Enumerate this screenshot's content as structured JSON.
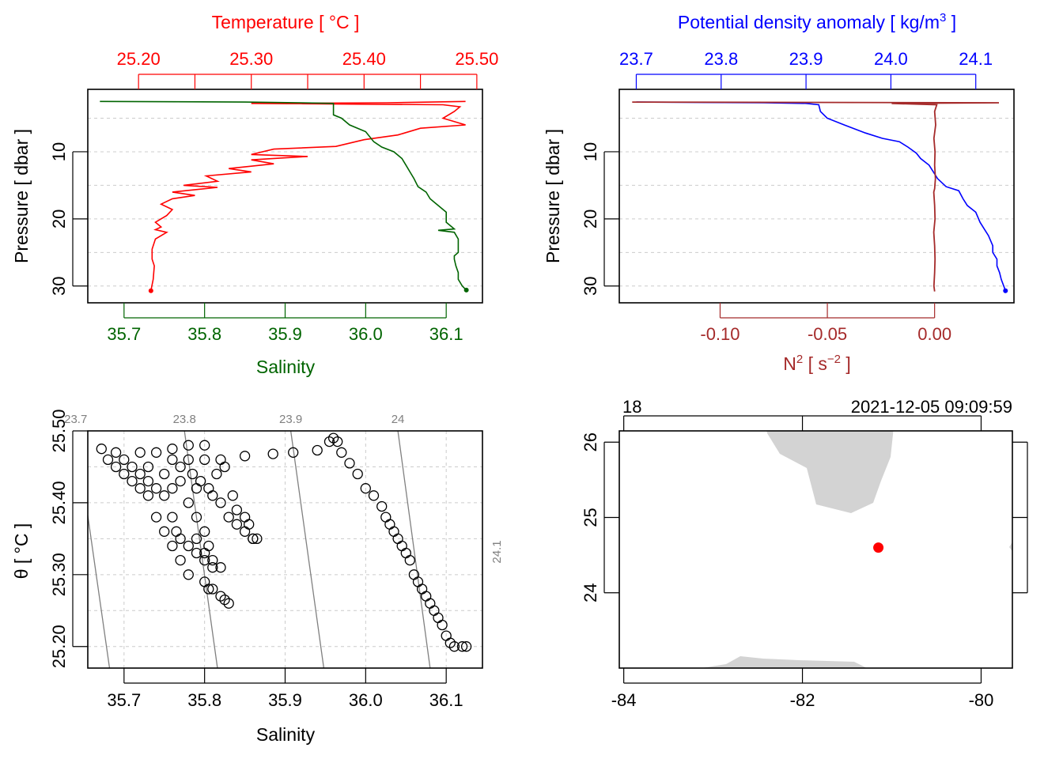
{
  "colors": {
    "temperature": "#ff0000",
    "salinity": "#006400",
    "density": "#0000ff",
    "n2": "#a52a2a",
    "land": "#d3d3d3",
    "station": "#ff0000",
    "isopycnal": "#808080",
    "grid": "#cccccc"
  },
  "chart_data": [
    {
      "type": "line",
      "panel": "salinity-temperature-profile",
      "ylabel": "Pressure [ dbar ]",
      "ylim": [
        32.5,
        0.7
      ],
      "yticks": [
        10,
        20,
        30
      ],
      "grid_y": [
        5,
        10,
        15,
        20,
        25,
        30
      ],
      "top_axis": {
        "label": "Temperature [ °C ]",
        "range": [
          25.155,
          25.505
        ],
        "tick_labels": [
          "25.20",
          "25.30",
          "25.40",
          "25.50"
        ],
        "tick_values": [
          25.2,
          25.3,
          25.4,
          25.5
        ],
        "minor_ticks": [
          25.25,
          25.35,
          25.45
        ]
      },
      "bottom_axis": {
        "label": "Salinity",
        "range": [
          35.655,
          36.145
        ],
        "tick_labels": [
          "35.7",
          "35.8",
          "35.9",
          "36.0",
          "36.1"
        ],
        "tick_values": [
          35.7,
          35.8,
          35.9,
          36.0,
          36.1
        ]
      },
      "series": [
        {
          "name": "Temperature",
          "axis": "top",
          "points": [
            [
              25.49,
              2.5
            ],
            [
              25.42,
              2.7
            ],
            [
              25.3,
              2.8
            ],
            [
              25.47,
              3.0
            ],
            [
              25.485,
              3.3
            ],
            [
              25.48,
              4
            ],
            [
              25.47,
              5
            ],
            [
              25.49,
              6
            ],
            [
              25.45,
              6.5
            ],
            [
              25.43,
              7.5
            ],
            [
              25.4,
              8.2
            ],
            [
              25.375,
              9.2
            ],
            [
              25.32,
              9.6
            ],
            [
              25.3,
              10.4
            ],
            [
              25.35,
              10.7
            ],
            [
              25.3,
              11.2
            ],
            [
              25.32,
              11.8
            ],
            [
              25.28,
              12.5
            ],
            [
              25.3,
              13
            ],
            [
              25.26,
              13.6
            ],
            [
              25.27,
              14.4
            ],
            [
              25.24,
              15
            ],
            [
              25.27,
              15.3
            ],
            [
              25.23,
              16
            ],
            [
              25.25,
              16.5
            ],
            [
              25.23,
              17
            ],
            [
              25.22,
              17.8
            ],
            [
              25.23,
              18.6
            ],
            [
              25.225,
              19.5
            ],
            [
              25.215,
              20.5
            ],
            [
              25.22,
              21.2
            ],
            [
              25.215,
              21.6
            ],
            [
              25.225,
              22
            ],
            [
              25.215,
              23
            ],
            [
              25.212,
              24.5
            ],
            [
              25.212,
              26
            ],
            [
              25.214,
              27
            ],
            [
              25.213,
              29
            ],
            [
              25.211,
              30.7
            ]
          ]
        },
        {
          "name": "Salinity",
          "axis": "bottom",
          "points": [
            [
              35.67,
              2.5
            ],
            [
              35.85,
              2.6
            ],
            [
              35.92,
              2.7
            ],
            [
              35.96,
              2.8
            ],
            [
              35.96,
              3.5
            ],
            [
              35.96,
              4.5
            ],
            [
              35.97,
              5
            ],
            [
              35.98,
              6
            ],
            [
              36.0,
              7
            ],
            [
              36.01,
              8.5
            ],
            [
              36.02,
              9.3
            ],
            [
              36.035,
              10
            ],
            [
              36.04,
              10.5
            ],
            [
              36.045,
              11
            ],
            [
              36.05,
              12
            ],
            [
              36.055,
              13
            ],
            [
              36.06,
              14
            ],
            [
              36.065,
              15.2
            ],
            [
              36.075,
              16
            ],
            [
              36.08,
              17
            ],
            [
              36.09,
              18
            ],
            [
              36.1,
              19
            ],
            [
              36.1,
              20.5
            ],
            [
              36.11,
              21.5
            ],
            [
              36.09,
              21.7
            ],
            [
              36.11,
              22
            ],
            [
              36.115,
              23
            ],
            [
              36.115,
              24
            ],
            [
              36.115,
              25
            ],
            [
              36.11,
              25.5
            ],
            [
              36.11,
              26
            ],
            [
              36.112,
              27
            ],
            [
              36.115,
              28
            ],
            [
              36.115,
              29
            ],
            [
              36.12,
              30
            ],
            [
              36.125,
              30.6
            ]
          ]
        }
      ]
    },
    {
      "type": "line",
      "panel": "density-n2-profile",
      "ylabel": "Pressure [ dbar ]",
      "ylim": [
        32.5,
        0.7
      ],
      "yticks": [
        10,
        20,
        30
      ],
      "grid_y": [
        5,
        10,
        15,
        20,
        25,
        30
      ],
      "top_axis": {
        "label": "Potential density anomaly [ kg/m³ ]",
        "label_prefix": "Potential density anomaly [ kg/m",
        "label_sup": "3",
        "label_suffix": " ]",
        "range": [
          23.68,
          24.145
        ],
        "tick_labels": [
          "23.7",
          "23.8",
          "23.9",
          "24.0",
          "24.1"
        ],
        "tick_values": [
          23.7,
          23.8,
          23.9,
          24.0,
          24.1
        ]
      },
      "bottom_axis": {
        "label": "N² [ s⁻² ]",
        "label_base": "N",
        "label_sup1": "2",
        "label_mid": " [ s",
        "label_sup2": "−2",
        "label_end": " ]",
        "range": [
          -0.147,
          0.037
        ],
        "tick_labels": [
          "-0.10",
          "-0.05",
          "0.00"
        ],
        "tick_values": [
          -0.1,
          -0.05,
          0.0
        ]
      },
      "series": [
        {
          "name": "Potential density anomaly",
          "axis": "top",
          "points": [
            [
              23.7,
              2.6
            ],
            [
              23.85,
              2.7
            ],
            [
              23.9,
              2.8
            ],
            [
              23.915,
              3
            ],
            [
              23.917,
              4
            ],
            [
              23.925,
              5
            ],
            [
              23.945,
              6
            ],
            [
              23.97,
              7.2
            ],
            [
              23.99,
              8
            ],
            [
              24.01,
              8.5
            ],
            [
              24.02,
              9.3
            ],
            [
              24.03,
              10.2
            ],
            [
              24.035,
              11
            ],
            [
              24.045,
              12
            ],
            [
              24.05,
              13
            ],
            [
              24.055,
              14
            ],
            [
              24.065,
              15.2
            ],
            [
              24.08,
              15.8
            ],
            [
              24.085,
              17
            ],
            [
              24.09,
              18
            ],
            [
              24.1,
              19
            ],
            [
              24.105,
              20.5
            ],
            [
              24.11,
              21.5
            ],
            [
              24.115,
              22.5
            ],
            [
              24.12,
              24
            ],
            [
              24.12,
              25
            ],
            [
              24.125,
              26
            ],
            [
              24.125,
              27
            ],
            [
              24.128,
              28
            ],
            [
              24.13,
              29
            ],
            [
              24.133,
              30
            ],
            [
              24.135,
              30.7
            ]
          ]
        },
        {
          "name": "N2",
          "axis": "bottom",
          "points": [
            [
              -0.141,
              2.6
            ],
            [
              0.03,
              2.7
            ],
            [
              -0.02,
              2.8
            ],
            [
              0.001,
              3.0
            ],
            [
              0.0,
              4
            ],
            [
              0.0005,
              6
            ],
            [
              -0.0003,
              8
            ],
            [
              0.0002,
              10
            ],
            [
              0.0,
              12
            ],
            [
              0.0004,
              14
            ],
            [
              0.0,
              15.5
            ],
            [
              -0.0004,
              16
            ],
            [
              0.0,
              18
            ],
            [
              0.0002,
              20
            ],
            [
              -0.0004,
              22
            ],
            [
              0.0,
              24
            ],
            [
              0.0002,
              26
            ],
            [
              0.0,
              28
            ],
            [
              -0.0003,
              30
            ],
            [
              0.0,
              30.8
            ]
          ]
        }
      ]
    },
    {
      "type": "scatter",
      "panel": "ts-diagram",
      "xlabel": "Salinity",
      "ylabel": "θ [ °C ]",
      "xlim": [
        35.655,
        36.145
      ],
      "ylim": [
        25.17,
        25.5
      ],
      "xticks": [
        35.7,
        35.8,
        35.9,
        36.0,
        36.1
      ],
      "xtick_labels": [
        "35.7",
        "35.8",
        "35.9",
        "36.0",
        "36.1"
      ],
      "yticks": [
        25.2,
        25.3,
        25.4,
        25.5
      ],
      "ytick_labels": [
        "25.20",
        "25.30",
        "25.40",
        "25.50"
      ],
      "isopycnals": [
        {
          "label": "23.7",
          "s_bottom": 35.682,
          "s_top": 35.64
        },
        {
          "label": "23.8",
          "s_bottom": 35.816,
          "s_top": 35.775
        },
        {
          "label": "23.9",
          "s_bottom": 35.948,
          "s_top": 35.907
        },
        {
          "label": "24",
          "s_bottom": 36.08,
          "s_top": 36.04
        },
        {
          "label": "24.1",
          "s_bottom": 36.213,
          "s_top": 36.172
        }
      ],
      "points": [
        [
          35.672,
          25.475
        ],
        [
          35.69,
          25.47
        ],
        [
          35.7,
          25.46
        ],
        [
          35.71,
          25.45
        ],
        [
          35.72,
          25.44
        ],
        [
          35.73,
          25.43
        ],
        [
          35.74,
          25.42
        ],
        [
          35.75,
          25.41
        ],
        [
          35.76,
          25.38
        ],
        [
          35.765,
          25.36
        ],
        [
          35.77,
          25.35
        ],
        [
          35.78,
          25.34
        ],
        [
          35.79,
          25.33
        ],
        [
          35.8,
          25.32
        ],
        [
          35.81,
          25.31
        ],
        [
          35.72,
          25.47
        ],
        [
          35.74,
          25.47
        ],
        [
          35.76,
          25.475
        ],
        [
          35.78,
          25.48
        ],
        [
          35.8,
          25.48
        ],
        [
          35.73,
          25.45
        ],
        [
          35.75,
          25.44
        ],
        [
          35.77,
          25.43
        ],
        [
          35.79,
          25.42
        ],
        [
          35.81,
          25.41
        ],
        [
          35.82,
          25.4
        ],
        [
          35.83,
          25.38
        ],
        [
          35.84,
          25.37
        ],
        [
          35.85,
          25.36
        ],
        [
          35.86,
          25.35
        ],
        [
          35.78,
          25.46
        ],
        [
          35.8,
          25.46
        ],
        [
          35.82,
          25.46
        ],
        [
          35.76,
          25.42
        ],
        [
          35.78,
          25.4
        ],
        [
          35.79,
          25.38
        ],
        [
          35.8,
          25.36
        ],
        [
          35.805,
          25.34
        ],
        [
          35.81,
          25.32
        ],
        [
          35.82,
          25.31
        ],
        [
          35.74,
          25.38
        ],
        [
          35.75,
          25.36
        ],
        [
          35.76,
          25.34
        ],
        [
          35.77,
          25.32
        ],
        [
          35.78,
          25.3
        ],
        [
          35.8,
          25.29
        ],
        [
          35.805,
          25.28
        ],
        [
          35.82,
          25.27
        ],
        [
          35.83,
          25.26
        ],
        [
          35.825,
          25.265
        ],
        [
          35.81,
          25.28
        ],
        [
          35.8,
          25.33
        ],
        [
          35.79,
          25.35
        ],
        [
          35.835,
          25.41
        ],
        [
          35.84,
          25.39
        ],
        [
          35.85,
          25.38
        ],
        [
          35.855,
          25.37
        ],
        [
          35.86,
          25.35
        ],
        [
          35.865,
          25.35
        ],
        [
          35.76,
          25.46
        ],
        [
          35.77,
          25.45
        ],
        [
          35.785,
          25.44
        ],
        [
          35.795,
          25.43
        ],
        [
          35.805,
          25.42
        ],
        [
          35.815,
          25.44
        ],
        [
          35.825,
          25.45
        ],
        [
          35.73,
          25.41
        ],
        [
          35.72,
          25.42
        ],
        [
          35.71,
          25.43
        ],
        [
          35.7,
          25.44
        ],
        [
          35.69,
          25.45
        ],
        [
          35.68,
          25.46
        ],
        [
          35.85,
          25.465
        ],
        [
          35.885,
          25.468
        ],
        [
          35.91,
          25.47
        ],
        [
          35.94,
          25.473
        ],
        [
          35.955,
          25.485
        ],
        [
          35.96,
          25.49
        ],
        [
          35.965,
          25.485
        ],
        [
          35.97,
          25.47
        ],
        [
          35.98,
          25.455
        ],
        [
          35.99,
          25.44
        ],
        [
          36.0,
          25.42
        ],
        [
          36.01,
          25.41
        ],
        [
          36.02,
          25.395
        ],
        [
          36.025,
          25.38
        ],
        [
          36.03,
          25.37
        ],
        [
          36.035,
          25.36
        ],
        [
          36.04,
          25.35
        ],
        [
          36.045,
          25.34
        ],
        [
          36.05,
          25.33
        ],
        [
          36.055,
          25.32
        ],
        [
          36.06,
          25.3
        ],
        [
          36.065,
          25.29
        ],
        [
          36.07,
          25.28
        ],
        [
          36.075,
          25.27
        ],
        [
          36.08,
          25.26
        ],
        [
          36.085,
          25.25
        ],
        [
          36.09,
          25.24
        ],
        [
          36.095,
          25.23
        ],
        [
          36.1,
          25.215
        ],
        [
          36.105,
          25.205
        ],
        [
          36.11,
          25.2
        ],
        [
          36.12,
          25.2
        ],
        [
          36.125,
          25.2
        ]
      ]
    },
    {
      "type": "map",
      "panel": "station-map",
      "xlim": [
        -84.05,
        -79.65
      ],
      "ylim": [
        23.0,
        26.15
      ],
      "xticks": [
        -84,
        -82,
        -80
      ],
      "xtick_labels": [
        "-84",
        "-82",
        "-80"
      ],
      "yticks": [
        24,
        25,
        26
      ],
      "ytick_labels": [
        "24",
        "25",
        "26"
      ],
      "top_label_left": "18",
      "top_label_right": "2021-12-05 09:09:59",
      "station": {
        "lon": -81.15,
        "lat": 24.6
      }
    }
  ]
}
